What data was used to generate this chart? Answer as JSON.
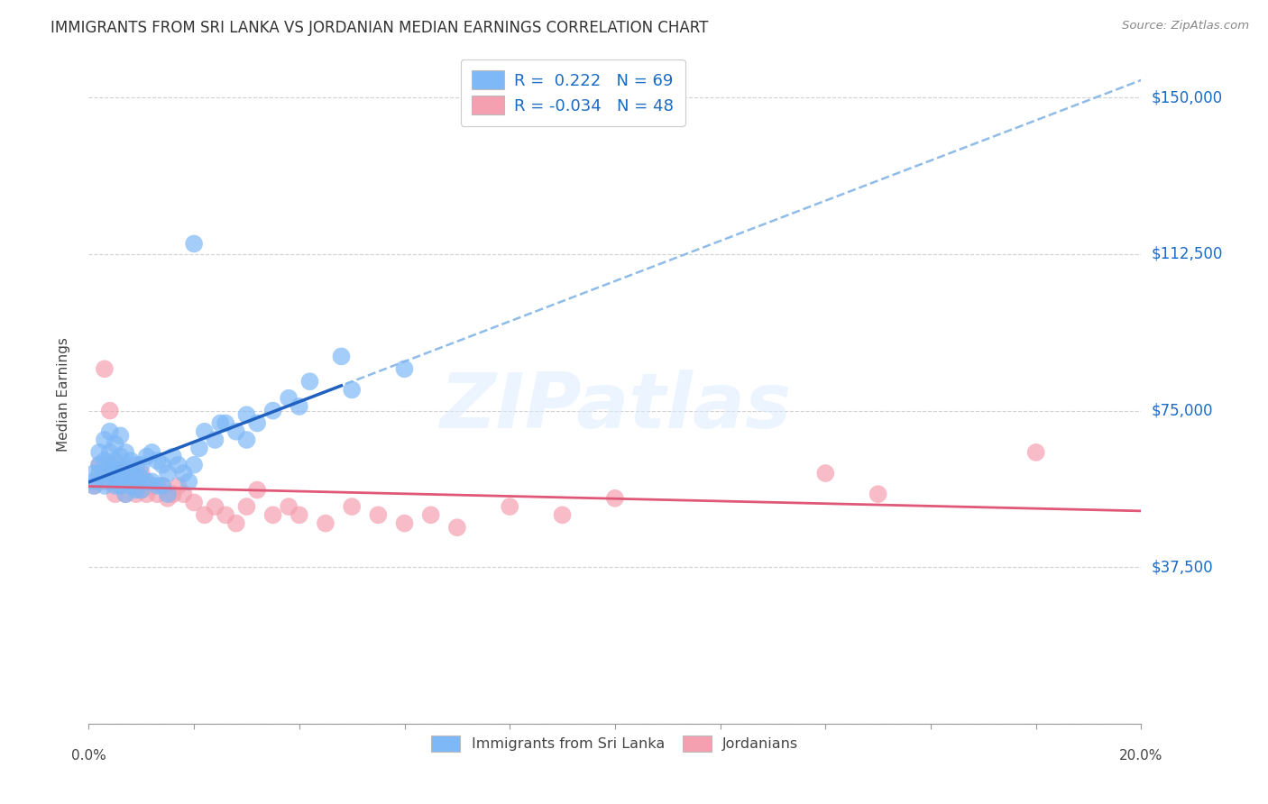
{
  "title": "IMMIGRANTS FROM SRI LANKA VS JORDANIAN MEDIAN EARNINGS CORRELATION CHART",
  "source": "Source: ZipAtlas.com",
  "ylabel": "Median Earnings",
  "yticks": [
    0,
    37500,
    75000,
    112500,
    150000
  ],
  "ytick_labels": [
    "",
    "$37,500",
    "$75,000",
    "$112,500",
    "$150,000"
  ],
  "xmin": 0.0,
  "xmax": 0.2,
  "ymin": 20000,
  "ymax": 158000,
  "sri_lanka_R": 0.222,
  "sri_lanka_N": 69,
  "jordanian_R": -0.034,
  "jordanian_N": 48,
  "sri_lanka_color": "#7eb8f7",
  "jordanian_color": "#f4a0b0",
  "sri_lanka_line_color": "#2060c0",
  "jordanian_line_color": "#e05878",
  "trend_dashed_color": "#90bce8",
  "watermark_text": "ZIPatlas",
  "legend_label_sri_lanka": "Immigrants from Sri Lanka",
  "legend_label_jordanian": "Jordanians",
  "sl_solid_xend": 0.048,
  "sl_line_intercept": 58000,
  "sl_line_slope": 600000,
  "jo_line_intercept": 57000,
  "jo_line_slope": -15000,
  "sri_lanka_x": [
    0.001,
    0.001,
    0.001,
    0.002,
    0.002,
    0.002,
    0.003,
    0.003,
    0.003,
    0.003,
    0.004,
    0.004,
    0.004,
    0.004,
    0.005,
    0.005,
    0.005,
    0.005,
    0.005,
    0.006,
    0.006,
    0.006,
    0.006,
    0.006,
    0.007,
    0.007,
    0.007,
    0.007,
    0.008,
    0.008,
    0.008,
    0.009,
    0.009,
    0.009,
    0.01,
    0.01,
    0.01,
    0.011,
    0.011,
    0.012,
    0.012,
    0.013,
    0.013,
    0.014,
    0.014,
    0.015,
    0.015,
    0.016,
    0.017,
    0.018,
    0.019,
    0.02,
    0.021,
    0.022,
    0.024,
    0.026,
    0.028,
    0.03,
    0.032,
    0.035,
    0.038,
    0.042,
    0.048,
    0.02,
    0.025,
    0.03,
    0.04,
    0.05,
    0.06
  ],
  "sri_lanka_y": [
    57000,
    58000,
    60000,
    60000,
    62000,
    65000,
    57000,
    60000,
    63000,
    68000,
    58000,
    62000,
    65000,
    70000,
    57000,
    59000,
    61000,
    63000,
    67000,
    57000,
    59000,
    61000,
    64000,
    69000,
    55000,
    58000,
    61000,
    65000,
    57000,
    60000,
    63000,
    56000,
    59000,
    62000,
    56000,
    59000,
    62000,
    58000,
    64000,
    58000,
    65000,
    57000,
    63000,
    57000,
    62000,
    55000,
    60000,
    64000,
    62000,
    60000,
    58000,
    62000,
    66000,
    70000,
    68000,
    72000,
    70000,
    68000,
    72000,
    75000,
    78000,
    82000,
    88000,
    115000,
    72000,
    74000,
    76000,
    80000,
    85000
  ],
  "jordanian_x": [
    0.001,
    0.002,
    0.003,
    0.003,
    0.004,
    0.004,
    0.005,
    0.005,
    0.006,
    0.006,
    0.007,
    0.007,
    0.008,
    0.008,
    0.009,
    0.009,
    0.01,
    0.01,
    0.011,
    0.012,
    0.013,
    0.014,
    0.015,
    0.016,
    0.017,
    0.018,
    0.02,
    0.022,
    0.024,
    0.026,
    0.028,
    0.03,
    0.032,
    0.035,
    0.038,
    0.04,
    0.045,
    0.05,
    0.055,
    0.06,
    0.065,
    0.07,
    0.08,
    0.09,
    0.1,
    0.14,
    0.15,
    0.18
  ],
  "jordanian_y": [
    57000,
    62000,
    58000,
    85000,
    60000,
    75000,
    55000,
    62000,
    57000,
    60000,
    55000,
    59000,
    57000,
    61000,
    55000,
    59000,
    56000,
    60000,
    55000,
    57000,
    55000,
    57000,
    54000,
    55000,
    57000,
    55000,
    53000,
    50000,
    52000,
    50000,
    48000,
    52000,
    56000,
    50000,
    52000,
    50000,
    48000,
    52000,
    50000,
    48000,
    50000,
    47000,
    52000,
    50000,
    54000,
    60000,
    55000,
    65000
  ]
}
